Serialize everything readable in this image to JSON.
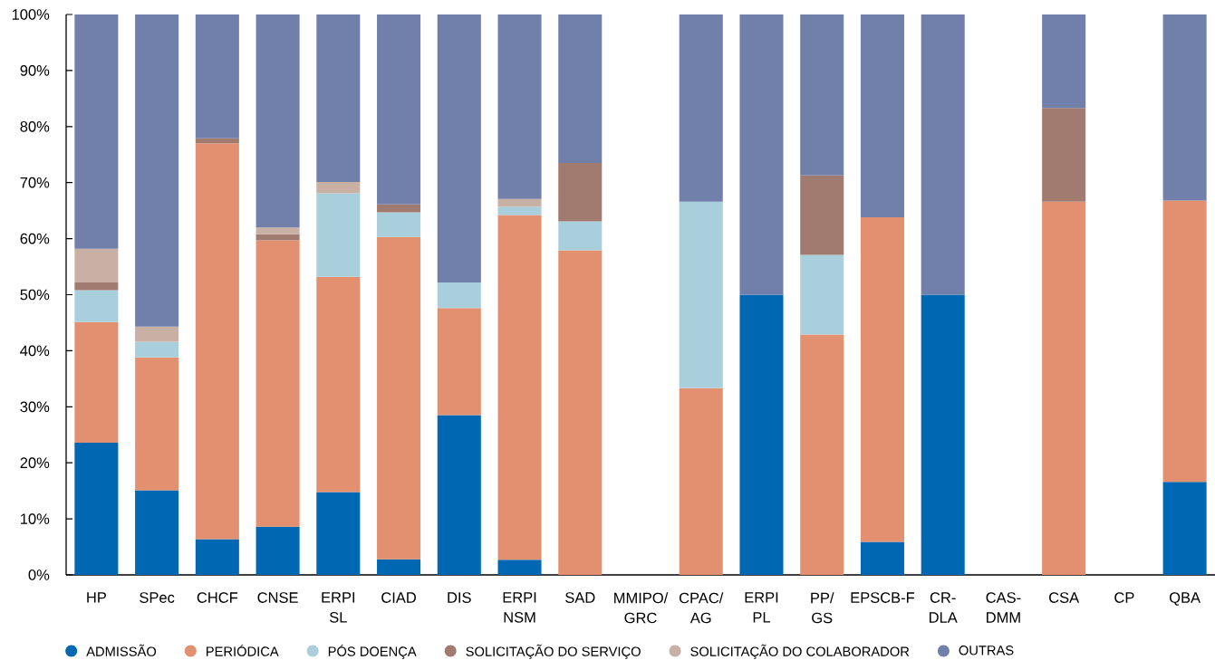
{
  "chart_data": {
    "type": "bar",
    "stacked": true,
    "categories": [
      "HP",
      "SPec",
      "CHCF",
      "CNSE",
      "ERPI\nSL",
      "CIAD",
      "DIS",
      "ERPI\nNSM",
      "SAD",
      "MMIPO/\nGRC",
      "CPAC/\nAG",
      "ERPI\nPL",
      "PP/\nGS",
      "EPSCB-F",
      "CR-\nDLA",
      "CAS-\nDMM",
      "CSA",
      "CP",
      "QBA"
    ],
    "series": [
      {
        "name": "ADMISSÃO",
        "color": "#0068b3",
        "values": [
          23.6,
          15.1,
          6.4,
          8.6,
          14.8,
          2.8,
          28.5,
          2.7,
          0,
          0,
          0,
          50,
          0,
          5.9,
          50,
          0,
          0,
          0,
          16.6
        ]
      },
      {
        "name": "PERIÓDICA",
        "color": "#e39070",
        "values": [
          21.5,
          23.7,
          70.6,
          51.1,
          38.4,
          57.5,
          19.1,
          61.5,
          57.9,
          0,
          33.3,
          0,
          42.9,
          57.9,
          0,
          0,
          66.6,
          0,
          50.2
        ]
      },
      {
        "name": "PÓS DOENÇA",
        "color": "#a9cfdd",
        "values": [
          5.7,
          2.8,
          0,
          0,
          14.9,
          4.4,
          4.6,
          1.5,
          5.2,
          0,
          33.3,
          0,
          14.2,
          0,
          0,
          0,
          0,
          0,
          0
        ]
      },
      {
        "name": "SOLICITAÇÃO DO SERVIÇO",
        "color": "#a17a70",
        "values": [
          1.4,
          0,
          0.9,
          1.1,
          0,
          1.4,
          0,
          0,
          10.4,
          0,
          0,
          0,
          14.2,
          0,
          0,
          0,
          16.7,
          0,
          0
        ]
      },
      {
        "name": "SOLICITAÇÃO DO COLABORADOR",
        "color": "#c8b0a5",
        "values": [
          6.0,
          2.7,
          0,
          1.2,
          2.0,
          0,
          0,
          1.4,
          0,
          0,
          0,
          0,
          0,
          0,
          0,
          0,
          0,
          0,
          0
        ]
      },
      {
        "name": "OUTRAS",
        "color": "#717fab",
        "values": [
          41.8,
          55.7,
          22.1,
          38.0,
          29.9,
          33.9,
          47.8,
          32.9,
          26.5,
          0,
          33.4,
          50,
          28.7,
          36.2,
          50,
          0,
          16.7,
          0,
          33.2
        ]
      }
    ],
    "ylim": [
      0,
      100
    ],
    "yticks": [
      {
        "value": 0,
        "label": "0%"
      },
      {
        "value": 10,
        "label": "10%"
      },
      {
        "value": 20,
        "label": "20%"
      },
      {
        "value": 30,
        "label": "30%"
      },
      {
        "value": 40,
        "label": "40%"
      },
      {
        "value": 50,
        "label": "50%"
      },
      {
        "value": 60,
        "label": "60%"
      },
      {
        "value": 70,
        "label": "70%"
      },
      {
        "value": 80,
        "label": "80%"
      },
      {
        "value": 90,
        "label": "90%"
      },
      {
        "value": 100,
        "label": "100%"
      }
    ],
    "legend": "bottom left"
  }
}
